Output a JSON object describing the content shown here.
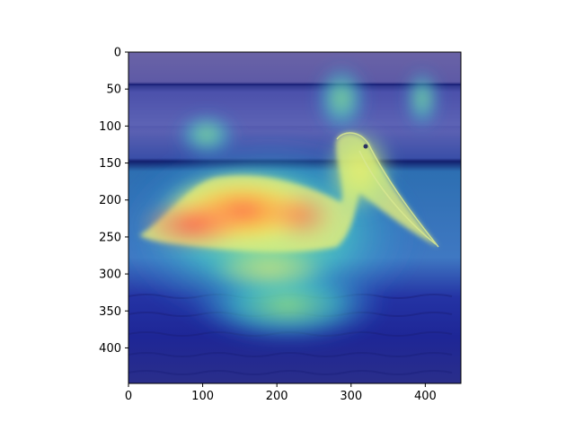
{
  "figure": {
    "background": "#ffffff",
    "frame_color": "#000000"
  },
  "image": {
    "description_tokens": [
      "pelican",
      "water",
      "heatmap-overlay"
    ],
    "colormap": "jet",
    "overlay_alpha": 0.5
  },
  "axes": {
    "x_range": [
      0,
      448
    ],
    "y_range": [
      448,
      0
    ],
    "x_ticks": [
      {
        "value": 0,
        "label": "0"
      },
      {
        "value": 100,
        "label": "100"
      },
      {
        "value": 200,
        "label": "200"
      },
      {
        "value": 300,
        "label": "300"
      },
      {
        "value": 400,
        "label": "400"
      }
    ],
    "y_ticks": [
      {
        "value": 0,
        "label": "0"
      },
      {
        "value": 50,
        "label": "50"
      },
      {
        "value": 100,
        "label": "100"
      },
      {
        "value": 150,
        "label": "150"
      },
      {
        "value": 200,
        "label": "200"
      },
      {
        "value": 250,
        "label": "250"
      },
      {
        "value": 300,
        "label": "300"
      },
      {
        "value": 350,
        "label": "350"
      },
      {
        "value": 400,
        "label": "400"
      }
    ]
  }
}
